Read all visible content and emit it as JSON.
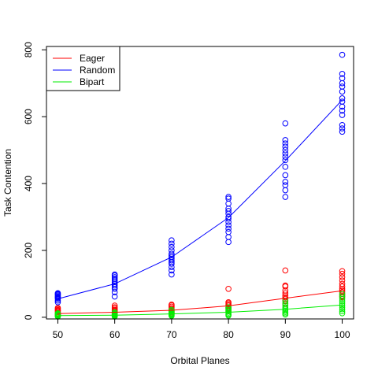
{
  "chart_data": {
    "type": "scatter",
    "title": "",
    "xlabel": "Orbital Planes",
    "ylabel": "Task Contention",
    "xlim": [
      48,
      102
    ],
    "ylim": [
      -5,
      810
    ],
    "x_ticks": [
      50,
      60,
      70,
      80,
      90,
      100
    ],
    "y_ticks": [
      0,
      200,
      400,
      600,
      800
    ],
    "legend_position": "top-left",
    "series": [
      {
        "name": "Eager",
        "color": "#ff0000",
        "fit": [
          [
            50,
            11
          ],
          [
            60,
            15
          ],
          [
            70,
            21
          ],
          [
            80,
            34
          ],
          [
            90,
            57
          ],
          [
            100,
            79
          ]
        ],
        "points": [
          [
            50,
            10
          ],
          [
            50,
            12
          ],
          [
            50,
            15
          ],
          [
            50,
            18
          ],
          [
            50,
            22
          ],
          [
            50,
            25
          ],
          [
            50,
            28
          ],
          [
            50,
            8
          ],
          [
            50,
            5
          ],
          [
            50,
            20
          ],
          [
            60,
            12
          ],
          [
            60,
            15
          ],
          [
            60,
            18
          ],
          [
            60,
            22
          ],
          [
            60,
            26
          ],
          [
            60,
            30
          ],
          [
            60,
            35
          ],
          [
            60,
            10
          ],
          [
            60,
            8
          ],
          [
            60,
            20
          ],
          [
            70,
            15
          ],
          [
            70,
            18
          ],
          [
            70,
            20
          ],
          [
            70,
            24
          ],
          [
            70,
            28
          ],
          [
            70,
            32
          ],
          [
            70,
            36
          ],
          [
            70,
            38
          ],
          [
            70,
            12
          ],
          [
            70,
            22
          ],
          [
            80,
            20
          ],
          [
            80,
            25
          ],
          [
            80,
            30
          ],
          [
            80,
            35
          ],
          [
            80,
            38
          ],
          [
            80,
            42
          ],
          [
            80,
            45
          ],
          [
            80,
            85
          ],
          [
            80,
            18
          ],
          [
            80,
            28
          ],
          [
            90,
            40
          ],
          [
            90,
            48
          ],
          [
            90,
            55
          ],
          [
            90,
            60
          ],
          [
            90,
            65
          ],
          [
            90,
            72
          ],
          [
            90,
            80
          ],
          [
            90,
            92
          ],
          [
            90,
            95
          ],
          [
            90,
            140
          ],
          [
            100,
            60
          ],
          [
            100,
            65
          ],
          [
            100,
            70
          ],
          [
            100,
            75
          ],
          [
            100,
            80
          ],
          [
            100,
            85
          ],
          [
            100,
            92
          ],
          [
            100,
            100
          ],
          [
            100,
            110
          ],
          [
            100,
            120
          ],
          [
            100,
            130
          ],
          [
            100,
            138
          ]
        ]
      },
      {
        "name": "Random",
        "color": "#0000ff",
        "fit": [
          [
            50,
            55
          ],
          [
            60,
            100
          ],
          [
            70,
            180
          ],
          [
            80,
            298
          ],
          [
            90,
            468
          ],
          [
            100,
            650
          ]
        ],
        "points": [
          [
            50,
            50
          ],
          [
            50,
            55
          ],
          [
            50,
            58
          ],
          [
            50,
            60
          ],
          [
            50,
            62
          ],
          [
            50,
            65
          ],
          [
            50,
            68
          ],
          [
            50,
            70
          ],
          [
            50,
            72
          ],
          [
            50,
            45
          ],
          [
            60,
            62
          ],
          [
            60,
            75
          ],
          [
            60,
            85
          ],
          [
            60,
            90
          ],
          [
            60,
            95
          ],
          [
            60,
            100
          ],
          [
            60,
            105
          ],
          [
            60,
            110
          ],
          [
            60,
            115
          ],
          [
            60,
            120
          ],
          [
            60,
            125
          ],
          [
            60,
            128
          ],
          [
            70,
            128
          ],
          [
            70,
            140
          ],
          [
            70,
            150
          ],
          [
            70,
            160
          ],
          [
            70,
            165
          ],
          [
            70,
            170
          ],
          [
            70,
            175
          ],
          [
            70,
            180
          ],
          [
            70,
            185
          ],
          [
            70,
            190
          ],
          [
            70,
            200
          ],
          [
            70,
            210
          ],
          [
            70,
            220
          ],
          [
            70,
            230
          ],
          [
            80,
            225
          ],
          [
            80,
            240
          ],
          [
            80,
            255
          ],
          [
            80,
            265
          ],
          [
            80,
            275
          ],
          [
            80,
            285
          ],
          [
            80,
            295
          ],
          [
            80,
            300
          ],
          [
            80,
            310
          ],
          [
            80,
            318
          ],
          [
            80,
            325
          ],
          [
            80,
            340
          ],
          [
            80,
            355
          ],
          [
            80,
            360
          ],
          [
            90,
            360
          ],
          [
            90,
            380
          ],
          [
            90,
            395
          ],
          [
            90,
            405
          ],
          [
            90,
            425
          ],
          [
            90,
            450
          ],
          [
            90,
            470
          ],
          [
            90,
            480
          ],
          [
            90,
            490
          ],
          [
            90,
            500
          ],
          [
            90,
            510
          ],
          [
            90,
            520
          ],
          [
            90,
            530
          ],
          [
            90,
            580
          ],
          [
            100,
            555
          ],
          [
            100,
            565
          ],
          [
            100,
            575
          ],
          [
            100,
            605
          ],
          [
            100,
            618
          ],
          [
            100,
            630
          ],
          [
            100,
            645
          ],
          [
            100,
            655
          ],
          [
            100,
            675
          ],
          [
            100,
            690
          ],
          [
            100,
            700
          ],
          [
            100,
            715
          ],
          [
            100,
            728
          ],
          [
            100,
            785
          ]
        ]
      },
      {
        "name": "Bipart",
        "color": "#00ee00",
        "fit": [
          [
            50,
            5
          ],
          [
            60,
            6
          ],
          [
            70,
            10
          ],
          [
            80,
            15
          ],
          [
            90,
            24
          ],
          [
            100,
            37
          ]
        ],
        "points": [
          [
            50,
            2
          ],
          [
            50,
            3
          ],
          [
            50,
            4
          ],
          [
            50,
            5
          ],
          [
            50,
            6
          ],
          [
            50,
            8
          ],
          [
            50,
            10
          ],
          [
            50,
            12
          ],
          [
            60,
            2
          ],
          [
            60,
            3
          ],
          [
            60,
            4
          ],
          [
            60,
            6
          ],
          [
            60,
            8
          ],
          [
            60,
            10
          ],
          [
            60,
            12
          ],
          [
            60,
            15
          ],
          [
            70,
            4
          ],
          [
            70,
            6
          ],
          [
            70,
            8
          ],
          [
            70,
            10
          ],
          [
            70,
            12
          ],
          [
            70,
            15
          ],
          [
            70,
            18
          ],
          [
            70,
            22
          ],
          [
            80,
            5
          ],
          [
            80,
            8
          ],
          [
            80,
            10
          ],
          [
            80,
            14
          ],
          [
            80,
            18
          ],
          [
            80,
            22
          ],
          [
            80,
            26
          ],
          [
            80,
            30
          ],
          [
            90,
            8
          ],
          [
            90,
            12
          ],
          [
            90,
            16
          ],
          [
            90,
            20
          ],
          [
            90,
            25
          ],
          [
            90,
            30
          ],
          [
            90,
            35
          ],
          [
            90,
            42
          ],
          [
            90,
            50
          ],
          [
            100,
            12
          ],
          [
            100,
            18
          ],
          [
            100,
            24
          ],
          [
            100,
            30
          ],
          [
            100,
            36
          ],
          [
            100,
            42
          ],
          [
            100,
            48
          ],
          [
            100,
            55
          ],
          [
            100,
            62
          ],
          [
            100,
            70
          ]
        ]
      }
    ]
  }
}
